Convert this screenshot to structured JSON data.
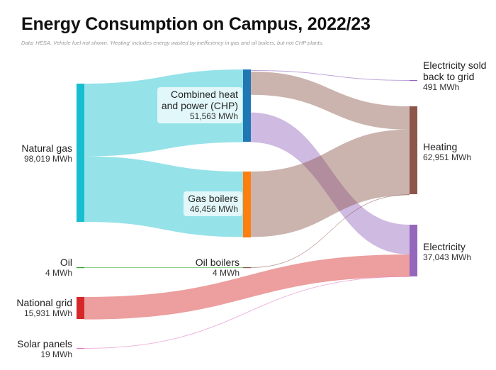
{
  "header": {
    "title": "Energy Consumption on Campus, 2022/23",
    "subtitle": "Data: HESA. Vehicle fuel not shown. 'Heating' includes energy wasted by inefficiency in gas and oil boilers, but not CHP plants."
  },
  "chart_data": {
    "type": "sankey",
    "unit": "MWh",
    "nodes": [
      {
        "id": "natural_gas",
        "label": "Natural gas",
        "value_label": "98,019 MWh",
        "value": 98019,
        "column": 0,
        "color": "#17becf"
      },
      {
        "id": "oil",
        "label": "Oil",
        "value_label": "4 MWh",
        "value": 4,
        "column": 0,
        "color": "#2ca02c"
      },
      {
        "id": "national_grid",
        "label": "National grid",
        "value_label": "15,931 MWh",
        "value": 15931,
        "column": 0,
        "color": "#d62728"
      },
      {
        "id": "solar",
        "label": "Solar panels",
        "value_label": "19 MWh",
        "value": 19,
        "column": 0,
        "color": "#e377c2"
      },
      {
        "id": "chp",
        "label": "Combined heat\nand power (CHP)",
        "label_line1": "Combined heat",
        "label_line2": "and power (CHP)",
        "value_label": "51,563 MWh",
        "value": 51563,
        "column": 1,
        "color": "#1f77b4"
      },
      {
        "id": "gas_boilers",
        "label": "Gas boilers",
        "value_label": "46,456 MWh",
        "value": 46456,
        "column": 1,
        "color": "#ff7f0e"
      },
      {
        "id": "oil_boilers",
        "label": "Oil boilers",
        "value_label": "4 MWh",
        "value": 4,
        "column": 1,
        "color": "#8c564b"
      },
      {
        "id": "sold",
        "label": "Electricity sold\nback to grid",
        "label_line1": "Electricity sold",
        "label_line2": "back to grid",
        "value_label": "491 MWh",
        "value": 491,
        "column": 2,
        "color": "#9467bd"
      },
      {
        "id": "heating",
        "label": "Heating",
        "value_label": "62,951 MWh",
        "value": 62951,
        "column": 2,
        "color": "#8c564b"
      },
      {
        "id": "electricity",
        "label": "Electricity",
        "value_label": "37,043 MWh",
        "value": 37043,
        "column": 2,
        "color": "#9467bd"
      }
    ],
    "links": [
      {
        "source": "natural_gas",
        "target": "chp",
        "value": 51563,
        "color": "#17becf"
      },
      {
        "source": "natural_gas",
        "target": "gas_boilers",
        "value": 46456,
        "color": "#17becf"
      },
      {
        "source": "oil",
        "target": "oil_boilers",
        "value": 4,
        "color": "#2ca02c"
      },
      {
        "source": "chp",
        "target": "sold",
        "value": 491,
        "color": "#9467bd"
      },
      {
        "source": "chp",
        "target": "heating",
        "value": 16491,
        "color": "#8c564b"
      },
      {
        "source": "chp",
        "target": "electricity",
        "value": 21093,
        "color": "#9467bd"
      },
      {
        "source": "gas_boilers",
        "target": "heating",
        "value": 46456,
        "color": "#8c564b"
      },
      {
        "source": "oil_boilers",
        "target": "heating",
        "value": 4,
        "color": "#8c564b"
      },
      {
        "source": "national_grid",
        "target": "electricity",
        "value": 15931,
        "color": "#d62728"
      },
      {
        "source": "solar",
        "target": "electricity",
        "value": 19,
        "color": "#e377c2"
      }
    ]
  }
}
